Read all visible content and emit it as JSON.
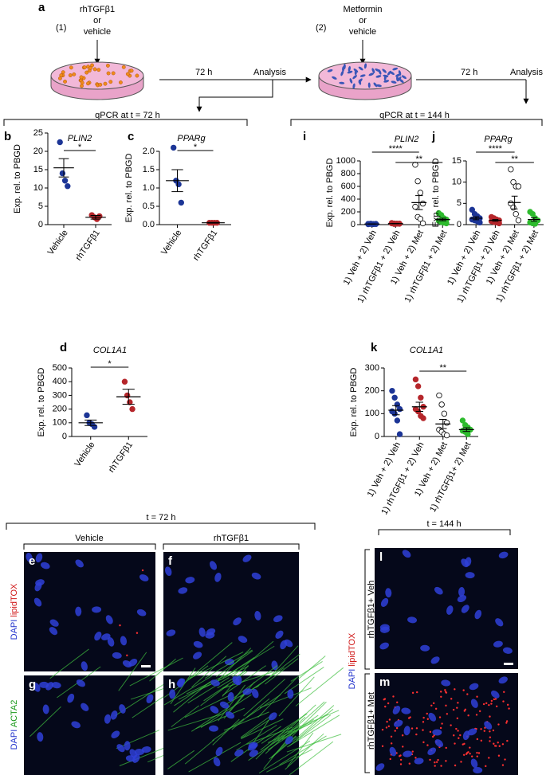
{
  "panel_labels": [
    "a",
    "b",
    "c",
    "d",
    "e",
    "f",
    "g",
    "h",
    "i",
    "j",
    "k",
    "l",
    "m"
  ],
  "schematic": {
    "step1": "(1)",
    "treatment1": [
      "rhTGFβ1",
      "or",
      "vehicle"
    ],
    "step2": "(2)",
    "treatment2": [
      "Metformin",
      "or",
      "vehicle"
    ],
    "time1": "72 h",
    "analysis1": "Analysis",
    "time2": "72 h",
    "analysis2": "Analysis",
    "qpcr1": "qPCR at t = 72 h",
    "qpcr2": "qPCR at t = 144 h"
  },
  "chart_data": [
    {
      "type": "strip",
      "title": "PLIN2",
      "ylabel": "Exp. rel. to PBGD",
      "categories": [
        "Vehicle",
        "rhTGFβ1"
      ],
      "ylim": [
        0,
        25
      ],
      "yticks": [
        0,
        5,
        10,
        15,
        20,
        25
      ],
      "groups": [
        {
          "color": "#1c3596",
          "filled": true,
          "points": [
            22.5,
            14,
            12,
            10.5
          ],
          "mean": 15.5,
          "sem": 2.5
        },
        {
          "color": "#b5262b",
          "filled": true,
          "points": [
            2.6,
            2,
            1.5,
            2.3
          ],
          "mean": 2,
          "sem": 0.5
        }
      ],
      "significance": [
        {
          "pair": [
            0,
            1
          ],
          "label": "*"
        }
      ]
    },
    {
      "type": "strip",
      "title": "PPARg",
      "ylabel": "Exp. rel. to PBGD",
      "categories": [
        "Vehicle",
        "rhTGFβ1"
      ],
      "ylim": [
        0,
        2
      ],
      "yticks": [
        {
          "value": 0,
          "label": "0.0"
        },
        {
          "value": 0.5,
          "label": "0.5"
        },
        {
          "value": 1,
          "label": "1.0"
        },
        {
          "value": 1.5,
          "label": "1.5"
        },
        {
          "value": 2,
          "label": "2.0"
        }
      ],
      "groups": [
        {
          "color": "#1c3596",
          "filled": true,
          "points": [
            2.1,
            1.2,
            1.1,
            0.6
          ],
          "mean": 1.2,
          "sem": 0.3
        },
        {
          "color": "#b5262b",
          "filled": true,
          "points": [
            0.05,
            0.05,
            0.05,
            0.05
          ],
          "mean": 0.05,
          "sem": 0.01
        }
      ],
      "significance": [
        {
          "pair": [
            0,
            1
          ],
          "label": "*"
        }
      ]
    },
    {
      "type": "strip",
      "title": "COL1A1",
      "ylabel": "Exp. rel. to PBGD",
      "categories": [
        "Vehicle",
        "rhTGFβ1"
      ],
      "ylim": [
        0,
        500
      ],
      "yticks": [
        0,
        100,
        200,
        300,
        400,
        500
      ],
      "groups": [
        {
          "color": "#1c3596",
          "filled": true,
          "points": [
            155,
            100,
            90,
            70
          ],
          "mean": 100,
          "sem": 20
        },
        {
          "color": "#b5262b",
          "filled": true,
          "points": [
            400,
            300,
            250,
            200
          ],
          "mean": 290,
          "sem": 55
        }
      ],
      "significance": [
        {
          "pair": [
            0,
            1
          ],
          "label": "*"
        }
      ]
    },
    {
      "type": "strip",
      "title": "PLIN2",
      "ylabel": "Exp. rel. to PBGD",
      "categories": [
        "1) Veh + 2) Veh",
        "1) rhTGFβ1 + 2) Veh",
        "1) Veh + 2) Met",
        "1) rhTGFβ1 + 2) Met"
      ],
      "ylim": [
        0,
        1000
      ],
      "yticks": [
        0,
        200,
        400,
        600,
        800,
        1000
      ],
      "groups": [
        {
          "color": "#1c3596",
          "filled": true,
          "points": [
            12,
            10,
            8,
            10,
            6,
            14,
            9,
            11
          ],
          "mean": 10,
          "sem": 2
        },
        {
          "color": "#b5262b",
          "filled": true,
          "points": [
            25,
            18,
            15,
            12,
            20,
            10,
            14,
            16
          ],
          "mean": 16,
          "sem": 3
        },
        {
          "color": "#000000",
          "filled": false,
          "points": [
            940,
            680,
            500,
            330,
            280,
            120,
            90,
            20
          ],
          "mean": 345,
          "sem": 110
        },
        {
          "color": "#2dbb2d",
          "filled": true,
          "points": [
            180,
            150,
            100,
            80,
            60,
            40,
            30,
            20
          ],
          "mean": 80,
          "sem": 20
        }
      ],
      "significance": [
        {
          "pair": [
            0,
            2
          ],
          "label": "****"
        },
        {
          "pair": [
            1,
            3
          ],
          "label": "**"
        }
      ]
    },
    {
      "type": "strip",
      "title": "PPARg",
      "ylabel": "Exp. rel. to PBGD",
      "categories": [
        "1) Veh + 2) Veh",
        "1) rhTGFβ1 + 2) Veh",
        "1) Veh + 2) Met",
        "1) rhTGFβ1 + 2) Met"
      ],
      "ylim": [
        0,
        15
      ],
      "yticks": [
        0,
        5,
        10,
        15
      ],
      "groups": [
        {
          "color": "#1c3596",
          "filled": true,
          "points": [
            3.5,
            2.5,
            2,
            1.5,
            1.2,
            1,
            0.8,
            0.5
          ],
          "mean": 1.5,
          "sem": 0.35
        },
        {
          "color": "#b5262b",
          "filled": true,
          "points": [
            1.8,
            1.5,
            1.2,
            1,
            0.8,
            0.6,
            0.5,
            0.3
          ],
          "mean": 1,
          "sem": 0.2
        },
        {
          "color": "#000000",
          "filled": false,
          "points": [
            13,
            10,
            9,
            9,
            5,
            4,
            2.5,
            1
          ],
          "mean": 5.2,
          "sem": 1.5
        },
        {
          "color": "#2dbb2d",
          "filled": true,
          "points": [
            3,
            2.5,
            1.5,
            1,
            0.5,
            0.3,
            0.2
          ],
          "mean": 1.2,
          "sem": 0.4
        }
      ],
      "significance": [
        {
          "pair": [
            0,
            2
          ],
          "label": "****"
        },
        {
          "pair": [
            1,
            3
          ],
          "label": "**"
        }
      ]
    },
    {
      "type": "strip",
      "title": "COL1A1",
      "ylabel": "Exp. rel. to PBGD",
      "categories": [
        "1) Veh + 2) Veh",
        "1) rhTGFβ1 + 2) Veh",
        "1) Veh + 2) Met",
        "1) rhTGFβ1+ 2) Met"
      ],
      "ylim": [
        0,
        300
      ],
      "yticks": [
        0,
        100,
        200,
        300
      ],
      "groups": [
        {
          "color": "#1c3596",
          "filled": true,
          "points": [
            200,
            170,
            140,
            120,
            110,
            100,
            70,
            10
          ],
          "mean": 115,
          "sem": 20
        },
        {
          "color": "#b5262b",
          "filled": true,
          "points": [
            250,
            220,
            170,
            130,
            120,
            110,
            90,
            80
          ],
          "mean": 130,
          "sem": 20
        },
        {
          "color": "#000000",
          "filled": false,
          "points": [
            180,
            140,
            100,
            60,
            30,
            20,
            10,
            5
          ],
          "mean": 55,
          "sem": 20
        },
        {
          "color": "#2dbb2d",
          "filled": true,
          "points": [
            70,
            50,
            40,
            30,
            25,
            20,
            10
          ],
          "mean": 30,
          "sem": 8
        }
      ],
      "significance": [
        {
          "pair": [
            1,
            3
          ],
          "label": "**"
        }
      ]
    }
  ],
  "micrographs": {
    "left_header": "t = 72 h",
    "vehicle": "Vehicle",
    "treated": "rhTGFβ1",
    "right_header": "t = 144 h",
    "stain_top": [
      "DAPI",
      "lipidTOX"
    ],
    "stain_bottom": [
      "DAPI",
      "ACTA2"
    ],
    "stain_right": [
      "DAPI",
      "lipidTOX"
    ],
    "row_l": "rhTGFβ1+ Veh",
    "row_m": "rhTGFβ1+ Met"
  }
}
